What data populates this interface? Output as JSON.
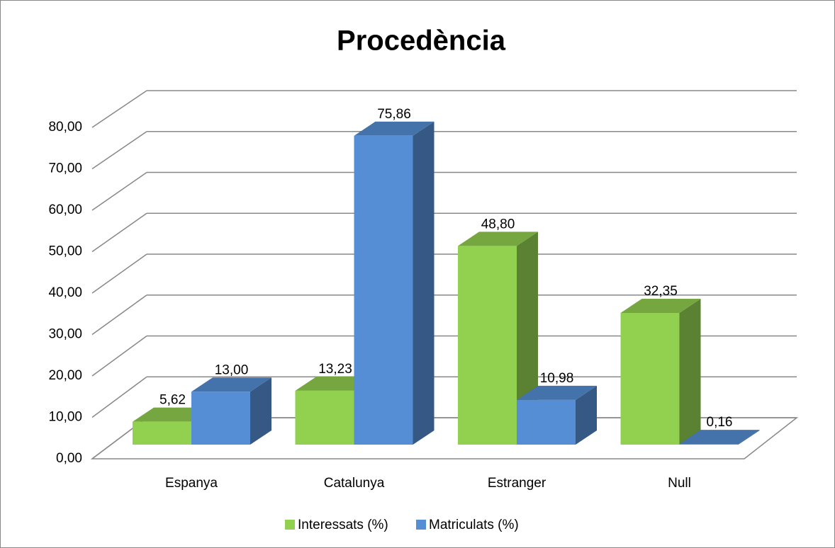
{
  "chart_data": {
    "type": "bar3d",
    "title": "Procedència",
    "categories": [
      "Espanya",
      "Catalunya",
      "Estranger",
      "Null"
    ],
    "series": [
      {
        "name": "Interessats (%)",
        "color": "#92d050",
        "values": [
          5.62,
          13.23,
          48.8,
          32.35
        ],
        "value_labels": [
          "5,62",
          "13,23",
          "48,80",
          "32,35"
        ]
      },
      {
        "name": "Matriculats (%)",
        "color": "#558ed5",
        "values": [
          13.0,
          75.86,
          10.98,
          0.16
        ],
        "value_labels": [
          "13,00",
          "75,86",
          "10,98",
          "0,16"
        ]
      }
    ],
    "ylim": [
      0,
      80
    ],
    "yticks": [
      {
        "value": 0,
        "label": "0,00"
      },
      {
        "value": 10,
        "label": "10,00"
      },
      {
        "value": 20,
        "label": "20,00"
      },
      {
        "value": 30,
        "label": "30,00"
      },
      {
        "value": 40,
        "label": "40,00"
      },
      {
        "value": 50,
        "label": "50,00"
      },
      {
        "value": 60,
        "label": "60,00"
      },
      {
        "value": 70,
        "label": "70,00"
      },
      {
        "value": 80,
        "label": "80,00"
      }
    ],
    "grid": true,
    "legend": "bottom"
  }
}
